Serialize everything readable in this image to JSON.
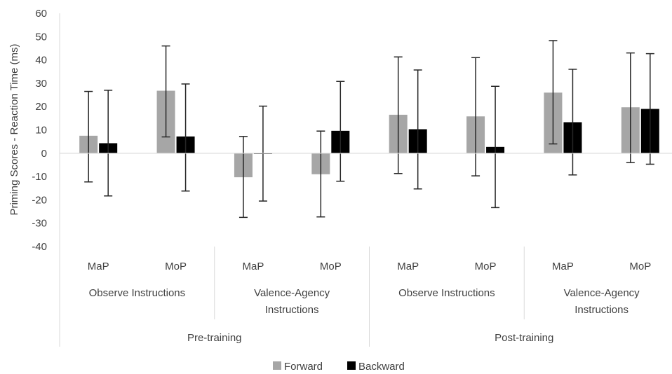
{
  "chart_data": {
    "type": "bar",
    "ylabel": "Priming Scores - Reaction Time (ms)",
    "ylim": [
      -40,
      60
    ],
    "ytick_step": 10,
    "grid": false,
    "legend_position": "bottom",
    "categories": [
      "MaP",
      "MoP",
      "MaP",
      "MoP",
      "MaP",
      "MoP",
      "MaP",
      "MoP"
    ],
    "instruction_groups": [
      {
        "lines": [
          "Observe Instructions"
        ],
        "span": 2
      },
      {
        "lines": [
          "Valence-Agency",
          "Instructions"
        ],
        "span": 2
      },
      {
        "lines": [
          "Observe Instructions"
        ],
        "span": 2
      },
      {
        "lines": [
          "Valence-Agency",
          "Instructions"
        ],
        "span": 2
      }
    ],
    "phase_groups": [
      {
        "label": "Pre-training",
        "span": 4
      },
      {
        "label": "Post-training",
        "span": 4
      }
    ],
    "series": [
      {
        "name": "Forward",
        "color": "#a6a6a6",
        "values": [
          7.5,
          26.8,
          -10.3,
          -9.0,
          16.5,
          15.8,
          26.0,
          19.7
        ],
        "error_low": [
          -12.3,
          7.0,
          -27.5,
          -27.3,
          -8.7,
          -9.7,
          4.0,
          -4.0
        ],
        "error_high": [
          26.5,
          46.0,
          7.2,
          9.5,
          41.3,
          41.0,
          48.3,
          43.0
        ]
      },
      {
        "name": "Backward",
        "color": "#000000",
        "values": [
          4.3,
          7.2,
          -0.3,
          9.6,
          10.3,
          2.7,
          13.3,
          19.0
        ],
        "error_low": [
          -18.3,
          -16.2,
          -20.5,
          -12.0,
          -15.3,
          -23.3,
          -9.3,
          -4.7
        ],
        "error_high": [
          27.0,
          29.7,
          20.2,
          30.8,
          35.7,
          28.7,
          36.0,
          42.7
        ]
      }
    ]
  }
}
